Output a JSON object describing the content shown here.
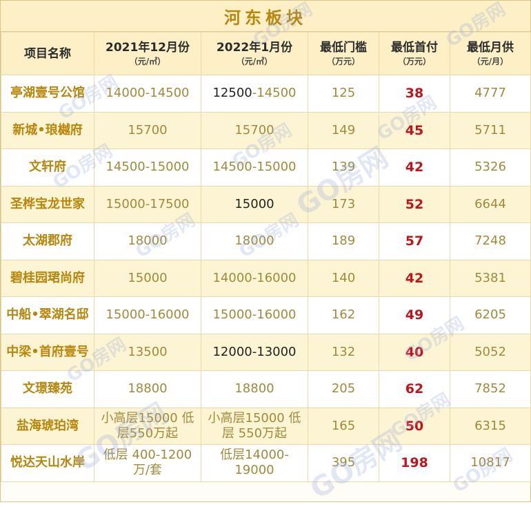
{
  "title": "河东板块",
  "headers": {
    "name": "项目名称",
    "dec2021": "2021年12月份",
    "dec2021_unit": "（元/㎡）",
    "jan2022": "2022年1月份",
    "jan2022_unit": "（元/㎡）",
    "threshold": "最低门槛",
    "threshold_unit": "（万元）",
    "down_payment": "最低首付",
    "down_payment_unit": "（万元）",
    "monthly": "最低月供",
    "monthly_unit": "（元/月）"
  },
  "rows": [
    {
      "name": "亭湖壹号公馆",
      "dec2021": "14000-14500",
      "jan2022_a": "12500",
      "jan2022_b": "-14500",
      "threshold": "125",
      "down_payment": "38",
      "monthly": "4777"
    },
    {
      "name": "新城•琅樾府",
      "dec2021": "15700",
      "jan2022_a": "",
      "jan2022_b": "15700",
      "threshold": "149",
      "down_payment": "45",
      "monthly": "5711"
    },
    {
      "name": "文轩府",
      "dec2021": "14500-15000",
      "jan2022_a": "",
      "jan2022_b": "14500-15000",
      "threshold": "139",
      "down_payment": "42",
      "monthly": "5326"
    },
    {
      "name": "圣桦宝龙世家",
      "dec2021": "15000-17500",
      "jan2022_a": "15000",
      "jan2022_b": "",
      "threshold": "173",
      "down_payment": "52",
      "monthly": "6644"
    },
    {
      "name": "太湖郡府",
      "dec2021": "18000",
      "jan2022_a": "",
      "jan2022_b": "18000",
      "threshold": "189",
      "down_payment": "57",
      "monthly": "7248"
    },
    {
      "name": "碧桂园珺尚府",
      "dec2021": "15000",
      "jan2022_a": "",
      "jan2022_b": "14000-16000",
      "threshold": "140",
      "down_payment": "42",
      "monthly": "5381"
    },
    {
      "name": "中船•翠湖名邸",
      "dec2021": "15000-16000",
      "jan2022_a": "",
      "jan2022_b": "15000-16000",
      "threshold": "162",
      "down_payment": "49",
      "monthly": "6205"
    },
    {
      "name": "中梁•首府壹号",
      "dec2021": "13500",
      "jan2022_a": "12000-13000",
      "jan2022_b": "",
      "threshold": "132",
      "down_payment": "40",
      "monthly": "5052"
    },
    {
      "name": "文璟臻苑",
      "dec2021": "18800",
      "jan2022_a": "",
      "jan2022_b": "18800",
      "threshold": "205",
      "down_payment": "62",
      "monthly": "7852"
    },
    {
      "name": "盐海琥珀湾",
      "dec2021": "小高层15000 低层550万起",
      "jan2022_a": "",
      "jan2022_b": "小高层15000 低层 550万起",
      "threshold": "165",
      "down_payment": "50",
      "monthly": "6315"
    },
    {
      "name": "悦达天山水岸",
      "dec2021": "低层 400-1200万/套",
      "jan2022_a": "",
      "jan2022_b": "低层14000-19000",
      "threshold": "395",
      "down_payment": "198",
      "monthly": "10817"
    }
  ],
  "watermark": "GO房网"
}
